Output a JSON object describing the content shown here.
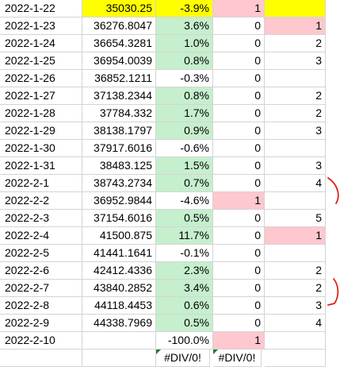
{
  "rows": [
    {
      "date": "2022-1-22",
      "value": "35030.25",
      "pct": "-3.9%",
      "flag": "1",
      "count": ""
    },
    {
      "date": "2022-1-23",
      "value": "36276.8047",
      "pct": "3.6%",
      "flag": "0",
      "count": "1"
    },
    {
      "date": "2022-1-24",
      "value": "36654.3281",
      "pct": "1.0%",
      "flag": "0",
      "count": "2"
    },
    {
      "date": "2022-1-25",
      "value": "36954.0039",
      "pct": "0.8%",
      "flag": "0",
      "count": "3"
    },
    {
      "date": "2022-1-26",
      "value": "36852.1211",
      "pct": "-0.3%",
      "flag": "0",
      "count": ""
    },
    {
      "date": "2022-1-27",
      "value": "37138.2344",
      "pct": "0.8%",
      "flag": "0",
      "count": "2"
    },
    {
      "date": "2022-1-28",
      "value": "37784.332",
      "pct": "1.7%",
      "flag": "0",
      "count": "2"
    },
    {
      "date": "2022-1-29",
      "value": "38138.1797",
      "pct": "0.9%",
      "flag": "0",
      "count": "3"
    },
    {
      "date": "2022-1-30",
      "value": "37917.6016",
      "pct": "-0.6%",
      "flag": "0",
      "count": ""
    },
    {
      "date": "2022-1-31",
      "value": "38483.125",
      "pct": "1.5%",
      "flag": "0",
      "count": "3"
    },
    {
      "date": "2022-2-1",
      "value": "38743.2734",
      "pct": "0.7%",
      "flag": "0",
      "count": "4"
    },
    {
      "date": "2022-2-2",
      "value": "36952.9844",
      "pct": "-4.6%",
      "flag": "1",
      "count": ""
    },
    {
      "date": "2022-2-3",
      "value": "37154.6016",
      "pct": "0.5%",
      "flag": "0",
      "count": "5"
    },
    {
      "date": "2022-2-4",
      "value": "41500.875",
      "pct": "11.7%",
      "flag": "0",
      "count": "1"
    },
    {
      "date": "2022-2-5",
      "value": "41441.1641",
      "pct": "-0.1%",
      "flag": "0",
      "count": ""
    },
    {
      "date": "2022-2-6",
      "value": "42412.4336",
      "pct": "2.3%",
      "flag": "0",
      "count": "2"
    },
    {
      "date": "2022-2-7",
      "value": "43840.2852",
      "pct": "3.4%",
      "flag": "0",
      "count": "2"
    },
    {
      "date": "2022-2-8",
      "value": "44118.4453",
      "pct": "0.6%",
      "flag": "0",
      "count": "3"
    },
    {
      "date": "2022-2-9",
      "value": "44338.7969",
      "pct": "0.5%",
      "flag": "0",
      "count": "4"
    },
    {
      "date": "2022-2-10",
      "value": "",
      "pct": "-100.0%",
      "flag": "1",
      "count": ""
    },
    {
      "date": "",
      "value": "",
      "pct": "#DIV/0!",
      "flag": "#DIV/0!",
      "count": ""
    }
  ],
  "colors": {
    "highlight_yellow": "#ffff00",
    "positive_green": "#c6efce",
    "flag_pink": "#ffc7ce",
    "ink_red": "#e0201b",
    "error_indicator": "#1e7b34"
  }
}
